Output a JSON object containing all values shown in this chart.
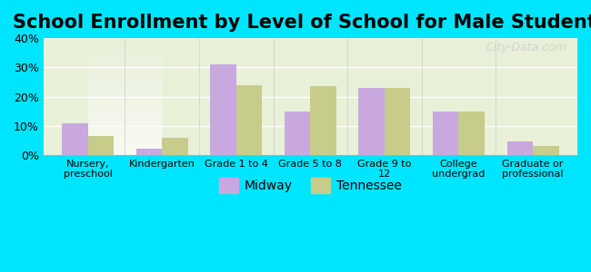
{
  "title": "School Enrollment by Level of School for Male Students",
  "categories": [
    "Nursery,\npreschool",
    "Kindergarten",
    "Grade 1 to 4",
    "Grade 5 to 8",
    "Grade 9 to\n12",
    "College\nundergrad",
    "Graduate or\nprofessional"
  ],
  "midway": [
    11,
    2,
    31,
    15,
    23,
    15,
    4.5
  ],
  "tennessee": [
    6.5,
    6,
    24,
    23.5,
    23,
    15,
    3
  ],
  "midway_color": "#c9a8e0",
  "tennessee_color": "#c8cc8a",
  "background_outer": "#00e5ff",
  "background_inner_top": "#e8f0d8",
  "background_inner_bottom": "#f5f5f5",
  "ylim": [
    0,
    40
  ],
  "yticks": [
    0,
    10,
    20,
    30,
    40
  ],
  "ytick_labels": [
    "0%",
    "10%",
    "20%",
    "30%",
    "40%"
  ],
  "bar_width": 0.35,
  "title_fontsize": 15,
  "legend_labels": [
    "Midway",
    "Tennessee"
  ],
  "watermark": "City-Data.com"
}
